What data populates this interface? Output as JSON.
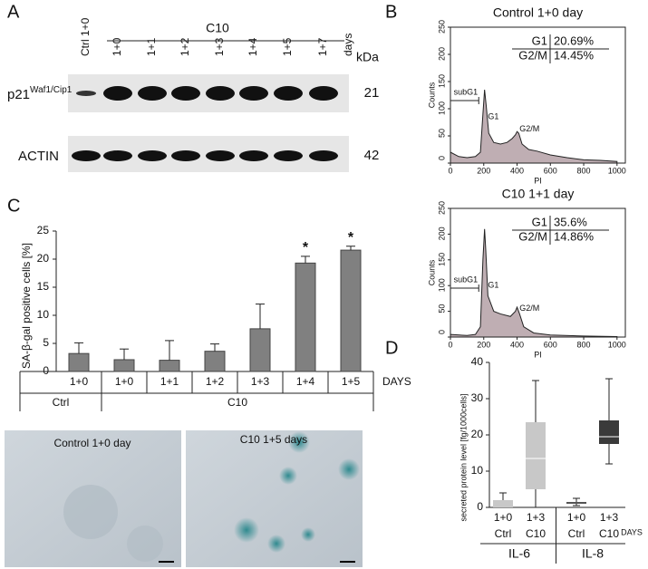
{
  "figure": {
    "panel_labels": [
      "A",
      "B",
      "C",
      "D"
    ],
    "blot": {
      "group": "C10",
      "lanes": [
        "Ctrl 1+0",
        "1+0",
        "1+1",
        "1+2",
        "1+3",
        "1+4",
        "1+5",
        "1+7"
      ],
      "days": "days",
      "unit": "kDa",
      "rows": [
        {
          "label": "p21",
          "superscript": "Waf1/Cip1",
          "kda": "21"
        },
        {
          "label": "ACTIN",
          "kda": "42"
        }
      ]
    },
    "micrographs": [
      {
        "caption": "Control 1+0 day"
      },
      {
        "caption": "C10 1+5 days"
      }
    ]
  },
  "chart_data": [
    {
      "type": "area",
      "title": "Control 1+0 day",
      "xlabel": "PI",
      "ylabel": "Counts",
      "color": "#bfaeb3",
      "x": [
        0,
        50,
        100,
        150,
        180,
        195,
        205,
        215,
        230,
        260,
        300,
        340,
        370,
        390,
        400,
        410,
        430,
        470,
        520,
        600,
        700,
        800,
        900,
        1000
      ],
      "values": [
        20,
        12,
        10,
        12,
        20,
        90,
        135,
        105,
        55,
        38,
        35,
        38,
        45,
        52,
        58,
        55,
        35,
        25,
        22,
        15,
        10,
        6,
        5,
        3
      ],
      "xlim": [
        0,
        1050
      ],
      "xticks": [
        0,
        200,
        400,
        600,
        800,
        1000
      ],
      "ylim": [
        0,
        250
      ],
      "yticks": [
        0,
        50,
        100,
        150,
        200,
        250
      ],
      "gates": [
        "subG1",
        "G1",
        "G2/M"
      ],
      "stats": [
        [
          "G1",
          "20.69%"
        ],
        [
          "G2/M",
          "14.45%"
        ]
      ]
    },
    {
      "type": "area",
      "title": "C10 1+1 day",
      "xlabel": "PI",
      "ylabel": "Counts",
      "color": "#bfaeb3",
      "x": [
        0,
        100,
        150,
        180,
        195,
        205,
        212,
        225,
        260,
        300,
        360,
        390,
        400,
        415,
        440,
        500,
        600,
        800,
        1000
      ],
      "values": [
        5,
        3,
        5,
        20,
        150,
        210,
        170,
        80,
        50,
        45,
        40,
        50,
        58,
        45,
        20,
        8,
        4,
        2,
        1
      ],
      "xlim": [
        0,
        1050
      ],
      "xticks": [
        0,
        200,
        400,
        600,
        800,
        1000
      ],
      "ylim": [
        0,
        250
      ],
      "yticks": [
        0,
        50,
        100,
        150,
        200,
        250
      ],
      "gates": [
        "subG1",
        "G1",
        "G2/M"
      ],
      "stats": [
        [
          "G1",
          "35.6%"
        ],
        [
          "G2/M",
          "14.86%"
        ]
      ]
    },
    {
      "type": "bar",
      "ylabel": "SA-β-gal positive cells [%]",
      "color": "#808080",
      "categories": [
        "1+0",
        "1+0",
        "1+1",
        "1+2",
        "1+3",
        "1+4",
        "1+5"
      ],
      "groups": [
        "Ctrl",
        "C10",
        "C10",
        "C10",
        "C10",
        "C10",
        "C10"
      ],
      "values": [
        3.2,
        2.1,
        2.0,
        3.6,
        7.6,
        19.3,
        21.6
      ],
      "errors": [
        1.9,
        1.9,
        3.5,
        1.3,
        4.4,
        1.2,
        0.7
      ],
      "significance": [
        null,
        null,
        null,
        null,
        null,
        "*",
        "*"
      ],
      "days_label": "DAYS",
      "ylim": [
        0,
        25
      ],
      "yticks": [
        0,
        5,
        10,
        15,
        20,
        25
      ]
    },
    {
      "type": "box",
      "ylabel": "secreted protein level [fg/1000cells]",
      "categories": [
        "1+0",
        "1+3",
        "1+0",
        "1+3"
      ],
      "treatments": [
        "Ctrl",
        "C10",
        "Ctrl",
        "C10"
      ],
      "groups": [
        "IL-6",
        "IL-6",
        "IL-8",
        "IL-8"
      ],
      "days_label": "DAYS",
      "boxes": [
        {
          "min": 0,
          "q1": 0,
          "median": 0.3,
          "q3": 2,
          "max": 4,
          "color": "#c8c8c8",
          "median_color": "#c8c8c8"
        },
        {
          "min": 0,
          "q1": 5,
          "median": 13.5,
          "q3": 23.5,
          "max": 35,
          "color": "#c8c8c8",
          "median_color": "#ffffff"
        },
        {
          "min": 0.5,
          "q1": 1,
          "median": 1.2,
          "q3": 1.5,
          "max": 2.5,
          "color": "#555555",
          "median_color": "#555555"
        },
        {
          "min": 12,
          "q1": 17.5,
          "median": 19.5,
          "q3": 24,
          "max": 35.5,
          "color": "#3a3a3a",
          "median_color": "#ffffff"
        }
      ],
      "ylim": [
        0,
        40
      ],
      "yticks": [
        0,
        10,
        20,
        30,
        40
      ]
    }
  ]
}
